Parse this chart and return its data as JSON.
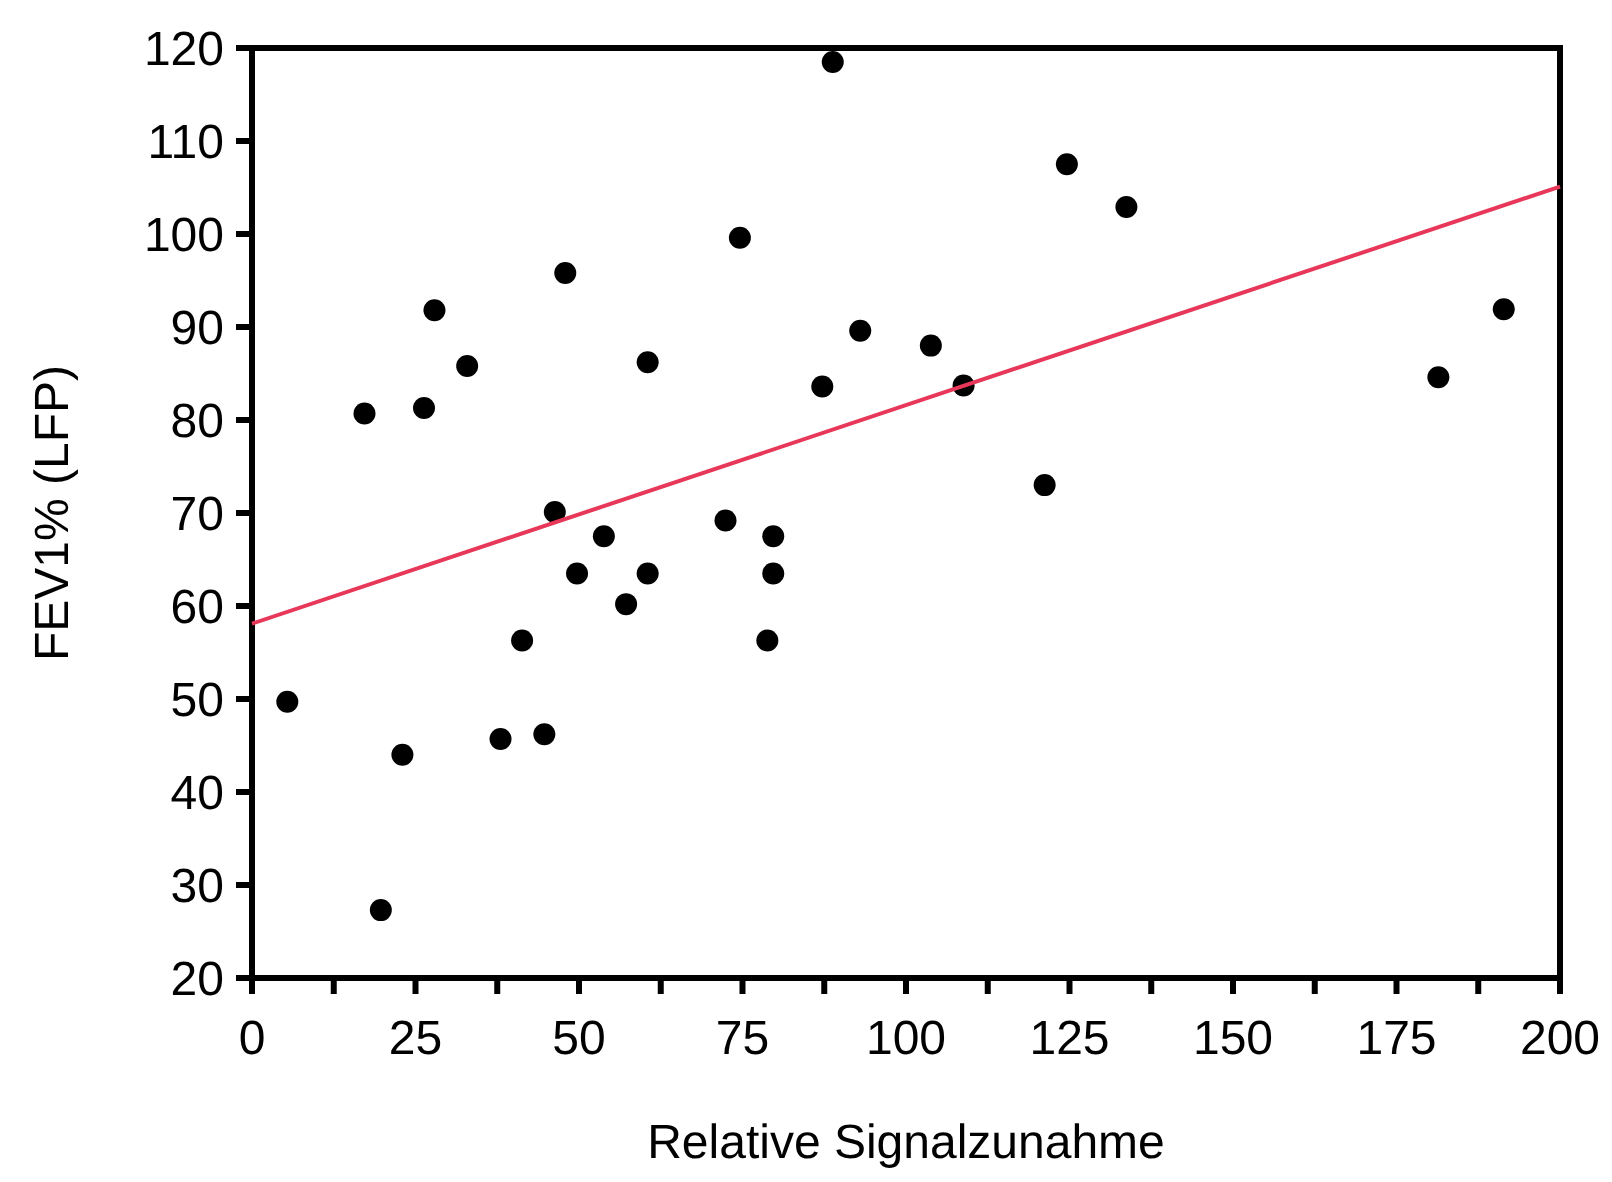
{
  "chart_data": {
    "type": "scatter",
    "xlabel": "Relative Signalzunahme",
    "ylabel": "FEV1% (LFP)",
    "xlim": [
      0,
      200
    ],
    "ylim": [
      20,
      120
    ],
    "xticks": [
      0,
      {
        "value": 12.5,
        "label": null
      },
      25,
      {
        "value": 37.5,
        "label": null
      },
      50,
      {
        "value": 62.5,
        "label": null
      },
      75,
      {
        "value": 87.5,
        "label": null
      },
      100,
      {
        "value": 112.5,
        "label": null
      },
      125,
      {
        "value": 137.5,
        "label": null
      },
      150,
      {
        "value": 162.5,
        "label": null
      },
      175,
      {
        "value": 187.5,
        "label": null
      },
      200
    ],
    "yticks": [
      20,
      30,
      40,
      50,
      60,
      70,
      80,
      90,
      100,
      110,
      120
    ],
    "grid": false,
    "marker": "circle",
    "series": [
      {
        "color": "#000000",
        "x": [
          5.4,
          17.2,
          19.7,
          23,
          26.3,
          27.9,
          32.9,
          38,
          41.3,
          44.7,
          46.3,
          47.9,
          49.7,
          53.8,
          57.2,
          60.5,
          60.5,
          72.4,
          74.6,
          78.8,
          79.7,
          79.7,
          87.2,
          88.8,
          93,
          103.8,
          108.8,
          121.2,
          124.6,
          133.7,
          181.4,
          191.4
        ],
        "values": [
          49.7,
          80.7,
          27.3,
          44,
          81.3,
          91.8,
          85.8,
          45.7,
          56.3,
          46.2,
          70.1,
          95.8,
          63.5,
          67.5,
          60.2,
          86.2,
          63.5,
          69.2,
          99.6,
          56.3,
          67.5,
          63.5,
          83.6,
          118.5,
          89.6,
          88,
          83.7,
          73,
          107.5,
          102.9,
          84.6,
          91.9
        ]
      },
      {
        "type": "line",
        "color": "#e8385a",
        "x": [
          0,
          200
        ],
        "values": [
          58.1,
          105.1
        ],
        "marker": "none",
        "line_style": "solid"
      }
    ]
  }
}
